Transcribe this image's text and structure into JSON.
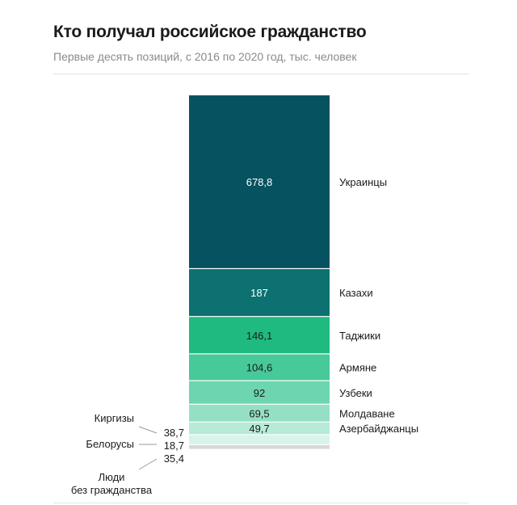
{
  "header": {
    "title": "Кто получал российское гражданство",
    "subtitle": "Первые десять позиций, с 2016 по 2020 год, тыс. человек"
  },
  "chart_data": {
    "type": "bar",
    "stacked": true,
    "title": "Кто получал российское гражданство",
    "subtitle": "Первые десять позиций, с 2016 по 2020 год, тыс. человек",
    "categories": [
      "Украинцы",
      "Казахи",
      "Таджики",
      "Армяне",
      "Узбеки",
      "Молдаване",
      "Азербайджанцы",
      "Киргизы",
      "Белорусы",
      "Люди без гражданства"
    ],
    "values": [
      678.8,
      187,
      146.1,
      104.6,
      92,
      69.5,
      49.7,
      38.7,
      18.7,
      35.4
    ],
    "value_labels": [
      "678,8",
      "187",
      "146,1",
      "104,6",
      "92",
      "69,5",
      "49,7",
      "38,7",
      "18,7",
      "35,4"
    ],
    "colors": [
      "#075260",
      "#0c7170",
      "#1fba7f",
      "#47c99a",
      "#6dd5b0",
      "#95e0c5",
      "#b7ead7",
      "#d8f4ea",
      "#d9d9d9",
      "#ffffff"
    ],
    "label_colors": [
      "#ffffff",
      "#ffffff",
      "#1b1b1b",
      "#1b1b1b",
      "#1b1b1b",
      "#1b1b1b",
      "#1b1b1b",
      "#1b1b1b",
      "#1b1b1b",
      "#1b1b1b"
    ],
    "outside_labels": [
      "Киргизы",
      "Белорусы",
      "Люди\nбез гражданства"
    ]
  }
}
